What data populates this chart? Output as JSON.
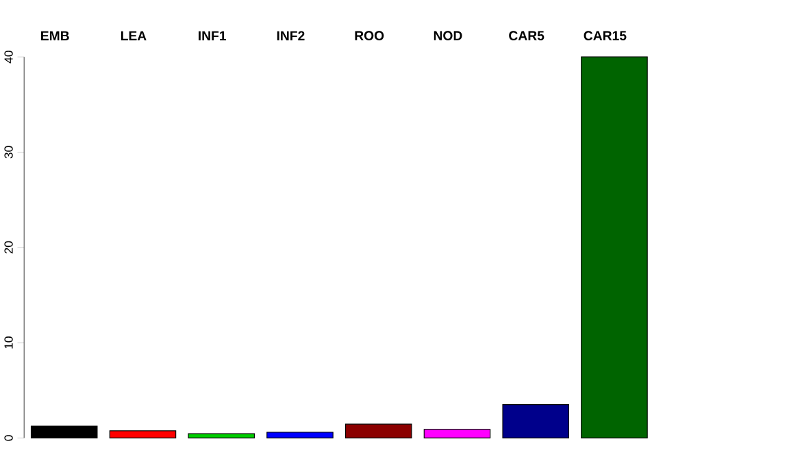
{
  "chart_data": {
    "type": "bar",
    "categories": [
      "EMB",
      "LEA",
      "INF1",
      "INF2",
      "ROO",
      "NOD",
      "CAR5",
      "CAR15"
    ],
    "values": [
      1.25,
      0.75,
      0.45,
      0.6,
      1.45,
      0.9,
      3.5,
      40
    ],
    "colors": [
      "#000000",
      "#ff0000",
      "#00cd00",
      "#0000ff",
      "#8b0000",
      "#ff00ff",
      "#00008b",
      "#006400"
    ],
    "ylim": [
      0,
      40
    ],
    "yticks": [
      0,
      10,
      20,
      30,
      40
    ]
  }
}
